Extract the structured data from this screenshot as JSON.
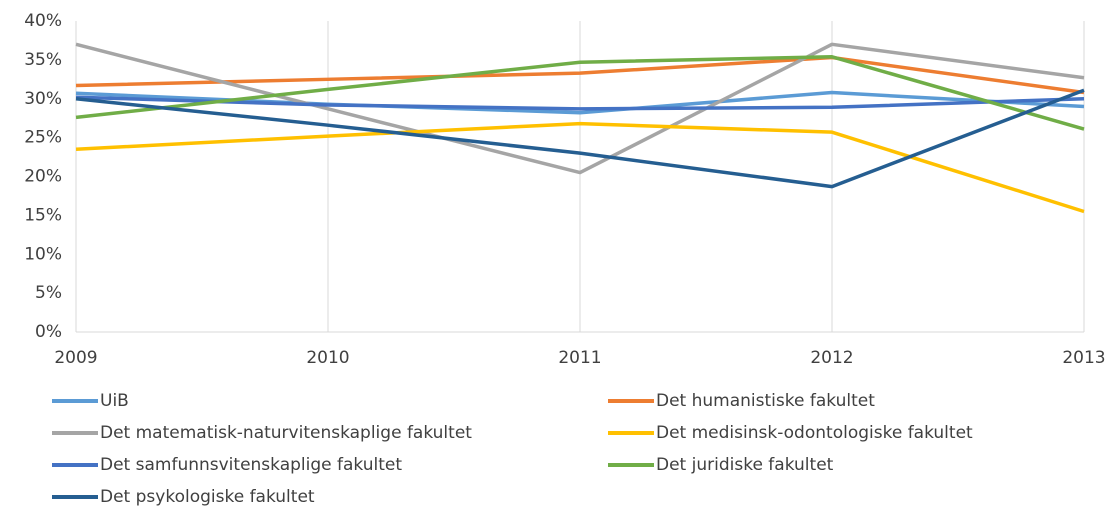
{
  "chart_data": {
    "type": "line",
    "x": [
      2009,
      2010,
      2011,
      2012,
      2013
    ],
    "xlim": [
      2009,
      2013
    ],
    "xticks": [
      2009,
      2010,
      2011,
      2012,
      2013
    ],
    "ylim": [
      0,
      40
    ],
    "yticks": [
      {
        "value": 0,
        "label": "0%"
      },
      {
        "value": 5,
        "label": "5%"
      },
      {
        "value": 10,
        "label": "10%"
      },
      {
        "value": 15,
        "label": "15%"
      },
      {
        "value": 20,
        "label": "20%"
      },
      {
        "value": 25,
        "label": "25%"
      },
      {
        "value": 30,
        "label": "30%"
      },
      {
        "value": 35,
        "label": "35%"
      },
      {
        "value": 40,
        "label": "40%"
      }
    ],
    "grid": "x",
    "legend": "bottom",
    "series": [
      {
        "name": "UiB",
        "color": "#5b9bd5",
        "values": [
          30.7,
          29.3,
          28.2,
          30.8,
          29.0
        ]
      },
      {
        "name": "Det humanistiske fakultet",
        "color": "#ed7d31",
        "values": [
          31.7,
          32.5,
          33.3,
          35.3,
          30.8
        ]
      },
      {
        "name": "Det matematisk-naturvitenskaplige fakultet",
        "color": "#a5a5a5",
        "values": [
          37.0,
          28.7,
          20.5,
          37.0,
          32.7
        ]
      },
      {
        "name": "Det medisinsk-odontologiske fakultet",
        "color": "#ffc000",
        "values": [
          23.5,
          25.2,
          26.8,
          25.7,
          15.5
        ]
      },
      {
        "name": "Det samfunnsvitenskaplige fakultet",
        "color": "#4472c4",
        "values": [
          30.2,
          29.2,
          28.7,
          28.9,
          30.0
        ]
      },
      {
        "name": "Det juridiske fakultet",
        "color": "#70ad47",
        "values": [
          27.6,
          31.2,
          34.7,
          35.4,
          26.1
        ]
      },
      {
        "name": "Det psykologiske fakultet",
        "color": "#255e91",
        "values": [
          30.0,
          26.6,
          23.0,
          18.7,
          31.1
        ]
      }
    ]
  }
}
